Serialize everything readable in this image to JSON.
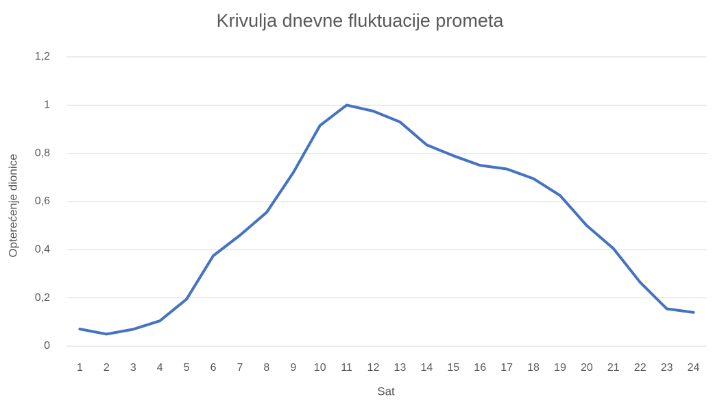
{
  "chart_data": {
    "type": "line",
    "title": "Krivulja dnevne fluktuacije prometa",
    "x_label": "Sat",
    "y_label": "Opterećenje dionice",
    "categories": [
      "1",
      "2",
      "3",
      "4",
      "5",
      "6",
      "7",
      "8",
      "9",
      "10",
      "11",
      "12",
      "13",
      "14",
      "15",
      "16",
      "17",
      "18",
      "19",
      "20",
      "21",
      "22",
      "23",
      "24"
    ],
    "series": [
      {
        "name": "Opterećenje dionice",
        "color": "#4472c4",
        "values": [
          0.071,
          0.05,
          0.07,
          0.105,
          0.195,
          0.375,
          0.46,
          0.555,
          0.72,
          0.915,
          1.0,
          0.975,
          0.93,
          0.835,
          0.79,
          0.75,
          0.735,
          0.695,
          0.625,
          0.5,
          0.405,
          0.265,
          0.155,
          0.14
        ]
      }
    ],
    "ylim": [
      0,
      1.2
    ],
    "yticks": [
      0,
      {
        "value": 0.2,
        "label": "0,2"
      },
      {
        "value": 0.4,
        "label": "0,4"
      },
      {
        "value": 0.6,
        "label": "0,6"
      },
      {
        "value": 0.8,
        "label": "0,8"
      },
      1,
      {
        "value": 1.2,
        "label": "1,2"
      }
    ],
    "grid": true
  }
}
